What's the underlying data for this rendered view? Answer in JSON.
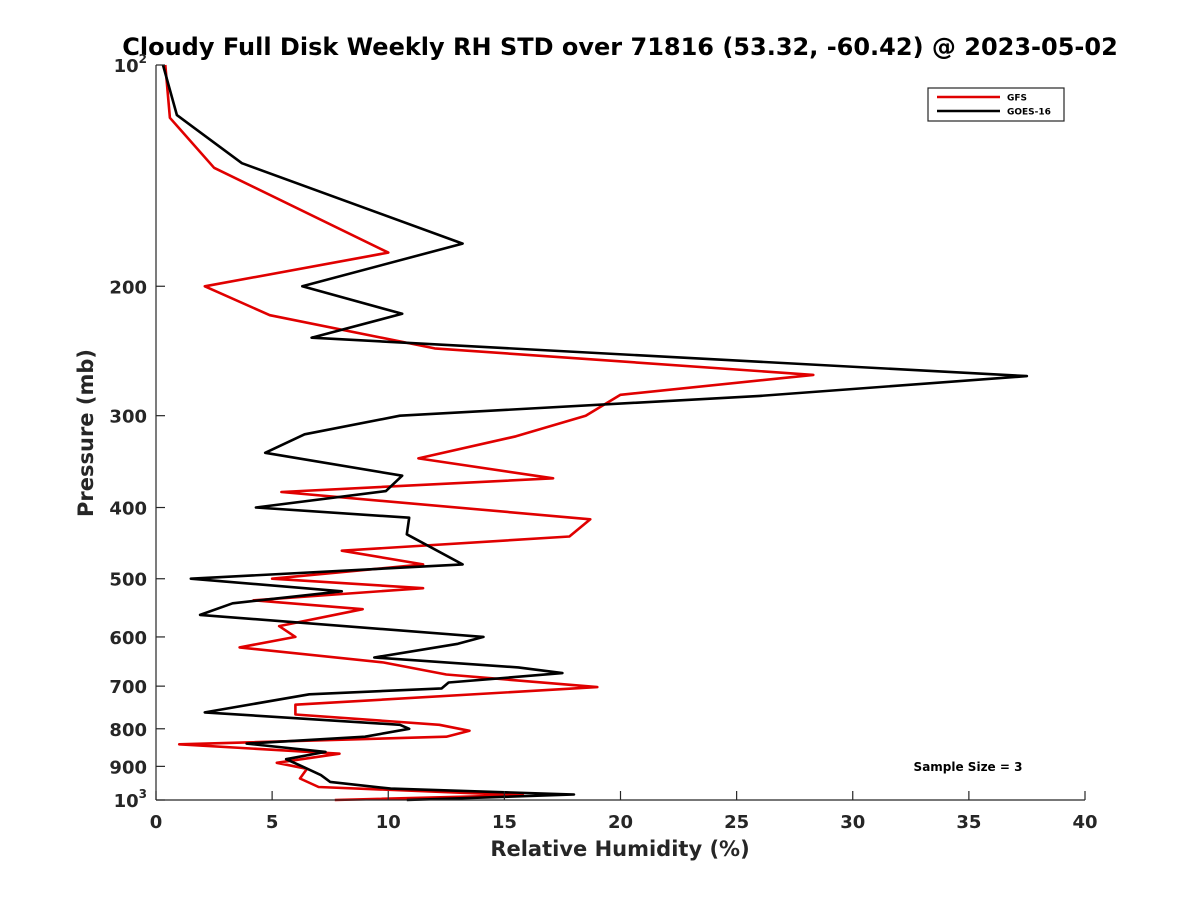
{
  "chart_data": {
    "type": "line",
    "title": "Cloudy Full Disk Weekly RH STD over 71816 (53.32, -60.42) @ 2023-05-02",
    "xlabel": "Relative Humidity (%)",
    "ylabel": "Pressure (mb)",
    "xlim": [
      0,
      40
    ],
    "ylim": [
      100,
      1000
    ],
    "y_scale": "log",
    "y_reversed": true,
    "x_ticks": [
      "0",
      "5",
      "10",
      "15",
      "20",
      "25",
      "30",
      "35",
      "40"
    ],
    "y_ticks": [
      {
        "value": 100,
        "base": "10",
        "exp": "2"
      },
      {
        "value": 200,
        "base": "200",
        "exp": ""
      },
      {
        "value": 300,
        "base": "300",
        "exp": ""
      },
      {
        "value": 400,
        "base": "400",
        "exp": ""
      },
      {
        "value": 500,
        "base": "500",
        "exp": ""
      },
      {
        "value": 600,
        "base": "600",
        "exp": ""
      },
      {
        "value": 700,
        "base": "700",
        "exp": ""
      },
      {
        "value": 800,
        "base": "800",
        "exp": ""
      },
      {
        "value": 900,
        "base": "900",
        "exp": ""
      },
      {
        "value": 1000,
        "base": "10",
        "exp": "3"
      }
    ],
    "grid": false,
    "legend_position": "top-right",
    "annotation": "Sample Size = 3",
    "series": [
      {
        "name": "GFS",
        "color": "#e00000",
        "points": [
          [
            0.4,
            100
          ],
          [
            0.6,
            118
          ],
          [
            2.5,
            138
          ],
          [
            10.0,
            180
          ],
          [
            2.1,
            200
          ],
          [
            4.9,
            219
          ],
          [
            12.0,
            243
          ],
          [
            28.3,
            264
          ],
          [
            20.0,
            281
          ],
          [
            18.5,
            300
          ],
          [
            15.5,
            320
          ],
          [
            11.3,
            343
          ],
          [
            17.1,
            365
          ],
          [
            5.4,
            381
          ],
          [
            18.7,
            415
          ],
          [
            17.8,
            438
          ],
          [
            8.0,
            458
          ],
          [
            11.5,
            478
          ],
          [
            5.0,
            500
          ],
          [
            11.5,
            515
          ],
          [
            4.2,
            535
          ],
          [
            8.9,
            550
          ],
          [
            5.3,
            580
          ],
          [
            6.0,
            600
          ],
          [
            3.6,
            620
          ],
          [
            9.8,
            650
          ],
          [
            12.5,
            675
          ],
          [
            19.0,
            702
          ],
          [
            6.0,
            742
          ],
          [
            6.0,
            765
          ],
          [
            12.2,
            790
          ],
          [
            13.5,
            805
          ],
          [
            12.5,
            820
          ],
          [
            1.0,
            840
          ],
          [
            7.9,
            865
          ],
          [
            5.2,
            890
          ],
          [
            6.5,
            907
          ],
          [
            6.2,
            935
          ],
          [
            7.0,
            960
          ],
          [
            15.8,
            985
          ],
          [
            7.7,
            1000
          ]
        ]
      },
      {
        "name": "GOES-16",
        "color": "#000000",
        "points": [
          [
            0.3,
            100
          ],
          [
            0.9,
            117
          ],
          [
            3.7,
            136
          ],
          [
            13.2,
            175
          ],
          [
            6.3,
            200
          ],
          [
            10.6,
            218
          ],
          [
            6.7,
            235
          ],
          [
            37.5,
            265
          ],
          [
            26.0,
            282
          ],
          [
            10.5,
            300
          ],
          [
            6.4,
            318
          ],
          [
            4.7,
            337
          ],
          [
            10.6,
            362
          ],
          [
            9.9,
            380
          ],
          [
            4.3,
            400
          ],
          [
            10.9,
            413
          ],
          [
            10.8,
            435
          ],
          [
            13.2,
            478
          ],
          [
            1.5,
            500
          ],
          [
            8.0,
            520
          ],
          [
            3.3,
            540
          ],
          [
            1.9,
            560
          ],
          [
            14.1,
            600
          ],
          [
            13.0,
            613
          ],
          [
            9.4,
            640
          ],
          [
            15.6,
            660
          ],
          [
            17.5,
            672
          ],
          [
            12.6,
            692
          ],
          [
            12.3,
            705
          ],
          [
            6.6,
            718
          ],
          [
            2.1,
            760
          ],
          [
            10.5,
            790
          ],
          [
            10.9,
            800
          ],
          [
            9.0,
            820
          ],
          [
            3.9,
            838
          ],
          [
            7.3,
            860
          ],
          [
            5.6,
            880
          ],
          [
            6.3,
            900
          ],
          [
            7.1,
            925
          ],
          [
            7.5,
            945
          ],
          [
            10.1,
            965
          ],
          [
            18.0,
            983
          ],
          [
            10.8,
            1000
          ]
        ]
      }
    ]
  }
}
